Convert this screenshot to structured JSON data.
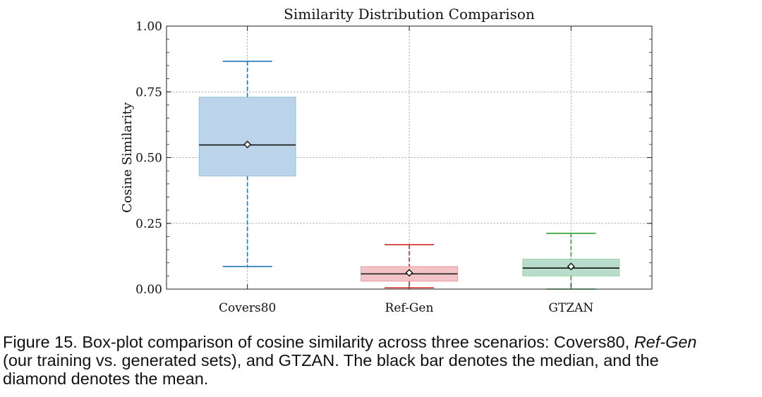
{
  "chart_data": {
    "type": "box",
    "title": "Similarity Distribution Comparison",
    "xlabel": "",
    "ylabel": "Cosine Similarity",
    "ylim": [
      0.0,
      1.0
    ],
    "yticks": [
      0.0,
      0.25,
      0.5,
      0.75,
      1.0
    ],
    "ytick_labels": [
      "0.00",
      "0.25",
      "0.50",
      "0.75",
      "1.00"
    ],
    "grid": true,
    "categories": [
      "Covers80",
      "Ref-Gen",
      "GTZAN"
    ],
    "boxes": [
      {
        "category": "Covers80",
        "whisker_low": 0.086,
        "q1": 0.43,
        "median": 0.548,
        "q3": 0.73,
        "whisker_high": 0.866,
        "mean": 0.55,
        "color": "#1f77b4",
        "fill": "#bcd4e9"
      },
      {
        "category": "Ref-Gen",
        "whisker_low": 0.005,
        "q1": 0.03,
        "median": 0.058,
        "q3": 0.086,
        "whisker_high": 0.169,
        "mean": 0.062,
        "color": "#d62728",
        "fill": "#f2c4c5"
      },
      {
        "category": "GTZAN",
        "whisker_low": 0.0,
        "q1": 0.05,
        "median": 0.08,
        "q3": 0.114,
        "whisker_high": 0.212,
        "mean": 0.086,
        "color": "#2ca02c",
        "fill": "#b8ddcd"
      }
    ]
  },
  "caption": {
    "prefix": "Figure 15. Box-plot comparison of cosine similarity across three scenarios: Covers80, ",
    "italic": "Ref-Gen",
    "line2": "(our training vs. generated sets), and GTZAN. The black bar denotes the median, and the",
    "line3": "diamond denotes the mean."
  }
}
